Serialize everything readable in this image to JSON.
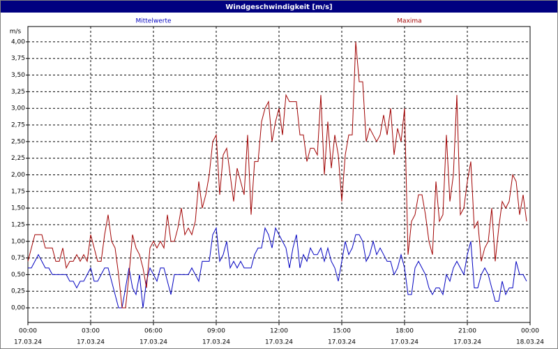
{
  "chart_data": {
    "type": "line",
    "title": "Windgeschwindigkeit [m/s]",
    "y_label": "m/s",
    "x": [
      0,
      10,
      20,
      30,
      40,
      50,
      60,
      70,
      80,
      90,
      100,
      110,
      120,
      130,
      140,
      150,
      160,
      170,
      180,
      190,
      200,
      210,
      220,
      230,
      240,
      250,
      260,
      270,
      280,
      290,
      300,
      310,
      320,
      330,
      340,
      350,
      360,
      370,
      380,
      390,
      400,
      410,
      420,
      430,
      440,
      450,
      460,
      470,
      480,
      490,
      500,
      510,
      520,
      530,
      540,
      550,
      560,
      570,
      580,
      590,
      600,
      610,
      620,
      630,
      640,
      650,
      660,
      670,
      680,
      690,
      700,
      710,
      720,
      730,
      740,
      750,
      760,
      770,
      780,
      790,
      800,
      810,
      820,
      830,
      840,
      850,
      860,
      870,
      880,
      890,
      900,
      910,
      920,
      930,
      940,
      950,
      960,
      970,
      980,
      990,
      1000,
      1010,
      1020,
      1030,
      1040,
      1050,
      1060,
      1070,
      1080,
      1090,
      1100,
      1110,
      1120,
      1130,
      1140,
      1150,
      1160,
      1170,
      1180,
      1190,
      1200,
      1210,
      1220,
      1230,
      1240,
      1250,
      1260,
      1270,
      1280,
      1290,
      1300,
      1310,
      1320,
      1330,
      1340,
      1350,
      1360,
      1370,
      1380,
      1390,
      1400,
      1410,
      1420,
      1430
    ],
    "series": [
      {
        "name": "Mittelwerte",
        "color": "#0000c0",
        "values": [
          0.6,
          0.6,
          0.7,
          0.8,
          0.7,
          0.6,
          0.6,
          0.5,
          0.5,
          0.5,
          0.5,
          0.5,
          0.4,
          0.4,
          0.3,
          0.4,
          0.4,
          0.5,
          0.6,
          0.4,
          0.4,
          0.5,
          0.6,
          0.6,
          0.4,
          0.2,
          0.0,
          0.0,
          0.3,
          0.6,
          0.3,
          0.2,
          0.5,
          0.0,
          0.4,
          0.6,
          0.5,
          0.4,
          0.6,
          0.6,
          0.4,
          0.2,
          0.5,
          0.5,
          0.5,
          0.5,
          0.5,
          0.6,
          0.5,
          0.4,
          0.7,
          0.7,
          0.7,
          1.1,
          1.2,
          0.7,
          0.8,
          1.0,
          0.6,
          0.7,
          0.6,
          0.7,
          0.6,
          0.6,
          0.6,
          0.8,
          0.9,
          0.9,
          1.2,
          1.1,
          0.9,
          1.2,
          1.1,
          1.0,
          0.9,
          0.6,
          0.9,
          1.1,
          0.6,
          0.8,
          0.7,
          0.9,
          0.8,
          0.8,
          0.9,
          0.7,
          0.9,
          0.7,
          0.6,
          0.4,
          0.7,
          1.0,
          0.8,
          0.9,
          1.1,
          1.1,
          1.0,
          0.7,
          0.8,
          1.0,
          0.8,
          0.9,
          0.8,
          0.7,
          0.7,
          0.5,
          0.6,
          0.8,
          0.6,
          0.2,
          0.2,
          0.6,
          0.7,
          0.6,
          0.5,
          0.3,
          0.2,
          0.3,
          0.3,
          0.2,
          0.5,
          0.4,
          0.6,
          0.7,
          0.6,
          0.5,
          0.8,
          1.0,
          0.3,
          0.3,
          0.5,
          0.6,
          0.5,
          0.3,
          0.1,
          0.1,
          0.4,
          0.2,
          0.3,
          0.3,
          0.7,
          0.5,
          0.5,
          0.4
        ]
      },
      {
        "name": "Maxima",
        "color": "#a00000",
        "values": [
          0.7,
          0.9,
          1.1,
          1.1,
          1.1,
          0.9,
          0.9,
          0.9,
          0.7,
          0.7,
          0.9,
          0.6,
          0.7,
          0.7,
          0.8,
          0.7,
          0.8,
          0.7,
          1.1,
          0.9,
          0.7,
          0.7,
          1.1,
          1.4,
          1.0,
          0.9,
          0.5,
          0.0,
          0.0,
          0.5,
          1.1,
          0.9,
          0.8,
          0.6,
          0.3,
          0.9,
          1.0,
          0.9,
          1.0,
          0.9,
          1.4,
          1.0,
          1.0,
          1.2,
          1.5,
          1.1,
          1.2,
          1.1,
          1.3,
          1.9,
          1.5,
          1.7,
          2.0,
          2.5,
          2.6,
          1.7,
          2.3,
          2.4,
          2.0,
          1.6,
          2.1,
          1.9,
          1.7,
          2.6,
          1.4,
          2.2,
          2.2,
          2.8,
          3.0,
          3.1,
          2.5,
          2.8,
          3.0,
          2.6,
          3.2,
          3.1,
          3.1,
          3.1,
          2.6,
          2.6,
          2.2,
          2.4,
          2.4,
          2.3,
          3.2,
          2.0,
          2.8,
          2.1,
          2.6,
          2.3,
          1.6,
          2.3,
          2.6,
          2.6,
          4.0,
          3.4,
          3.4,
          2.5,
          2.7,
          2.6,
          2.5,
          2.6,
          2.9,
          2.6,
          3.0,
          2.3,
          2.7,
          2.5,
          3.0,
          0.8,
          1.3,
          1.4,
          1.7,
          1.7,
          1.4,
          1.0,
          0.8,
          1.9,
          1.3,
          1.4,
          2.6,
          1.6,
          2.0,
          3.2,
          1.4,
          1.5,
          1.9,
          2.2,
          1.2,
          1.3,
          0.7,
          0.9,
          1.0,
          1.5,
          0.7,
          1.2,
          1.6,
          1.5,
          1.6,
          2.0,
          1.9,
          1.4,
          1.7,
          1.3
        ]
      }
    ],
    "xlim": [
      0,
      1440
    ],
    "xticks": [
      {
        "value": 0,
        "label": "00:00"
      },
      {
        "value": 180,
        "label": "03:00"
      },
      {
        "value": 360,
        "label": "06:00"
      },
      {
        "value": 540,
        "label": "09:00"
      },
      {
        "value": 720,
        "label": "12:00"
      },
      {
        "value": 900,
        "label": "15:00"
      },
      {
        "value": 1080,
        "label": "18:00"
      },
      {
        "value": 1260,
        "label": "21:00"
      },
      {
        "value": 1440,
        "label": "00:00"
      }
    ],
    "xtick_dates": [
      "17.03.24",
      "17.03.24",
      "17.03.24",
      "17.03.24",
      "17.03.24",
      "17.03.24",
      "17.03.24",
      "17.03.24",
      "18.03.24"
    ],
    "ylim": [
      -0.22,
      4.23
    ],
    "yticks": [
      {
        "value": 0,
        "label": "0,00"
      },
      {
        "value": 0.25,
        "label": "0,25"
      },
      {
        "value": 0.5,
        "label": "0,50"
      },
      {
        "value": 0.75,
        "label": "0,75"
      },
      {
        "value": 1,
        "label": "1,00"
      },
      {
        "value": 1.25,
        "label": "1,25"
      },
      {
        "value": 1.5,
        "label": "1,50"
      },
      {
        "value": 1.75,
        "label": "1,75"
      },
      {
        "value": 2,
        "label": "2,00"
      },
      {
        "value": 2.25,
        "label": "2,25"
      },
      {
        "value": 2.5,
        "label": "2,50"
      },
      {
        "value": 2.75,
        "label": "2,75"
      },
      {
        "value": 3,
        "label": "3,00"
      },
      {
        "value": 3.25,
        "label": "3,25"
      },
      {
        "value": 3.5,
        "label": "3,50"
      },
      {
        "value": 3.75,
        "label": "3,75"
      },
      {
        "value": 4,
        "label": "4,00"
      }
    ],
    "grid": true
  }
}
